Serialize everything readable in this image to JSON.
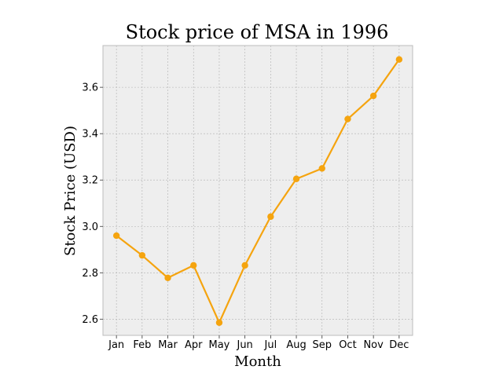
{
  "chart_data": {
    "type": "line",
    "title": "Stock price of MSA in 1996",
    "xlabel": "Month",
    "ylabel": "Stock Price (USD)",
    "categories": [
      "Jan",
      "Feb",
      "Mar",
      "Apr",
      "May",
      "Jun",
      "Jul",
      "Aug",
      "Sep",
      "Oct",
      "Nov",
      "Dec"
    ],
    "series": [
      {
        "values": [
          2.96,
          2.875,
          2.778,
          2.832,
          2.585,
          2.832,
          3.042,
          3.205,
          3.25,
          3.463,
          3.563,
          3.72
        ],
        "color": "#f5a40f",
        "marker": "circle"
      }
    ],
    "ylim": [
      2.53,
      3.78
    ],
    "yticks": [
      "2.6",
      "2.8",
      "3.0",
      "3.2",
      "3.4",
      "3.6"
    ],
    "grid": true,
    "legend": "none",
    "colors": {
      "plot_background": "#eeeeee",
      "grid": "#b0b0b0",
      "frame": "#bcbcbc"
    }
  }
}
